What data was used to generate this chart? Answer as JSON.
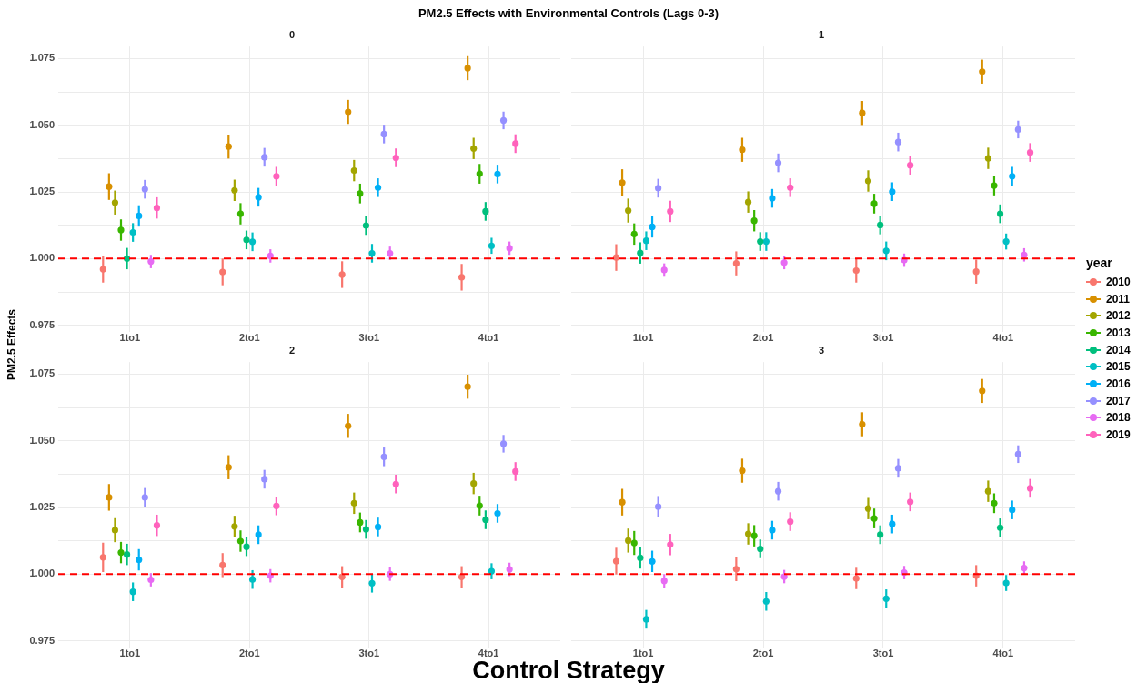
{
  "chart_data": [
    {
      "type": "scatter",
      "title": "0",
      "annotations": [
        "PM2.5 Effects with Environmental Controls (Lags 0-3)"
      ],
      "categories": [
        "1to1",
        "2to1",
        "3to1",
        "4to1"
      ],
      "ylim": [
        0.9725,
        1.0795
      ],
      "yticks": [
        0.975,
        {
          "value": 0.9875,
          "label": null
        },
        {
          "value": 1,
          "label": "1.000"
        },
        {
          "value": 1.0125,
          "label": null
        },
        1.025,
        {
          "value": 1.0375,
          "label": null
        },
        {
          "value": 1.05,
          "label": "1.050"
        },
        {
          "value": 1.0625,
          "label": null
        },
        1.075
      ],
      "grid": true,
      "marker": "circle",
      "legend": "right",
      "legend_title": "year",
      "ref_lines": [
        {
          "axis": "y",
          "value": 1,
          "color": "#ff0000",
          "line_style": "dashed"
        }
      ],
      "series": [
        {
          "name": "2010",
          "color": "#f8766d",
          "values": [
            0.996,
            0.995,
            0.994,
            0.993
          ],
          "errors": [
            0.005,
            0.005,
            0.005,
            0.005
          ]
        },
        {
          "name": "2011",
          "color": "#d89000",
          "values": [
            1.027,
            1.042,
            1.055,
            1.0714
          ],
          "errors": [
            0.005,
            0.0045,
            0.0045,
            0.0045
          ]
        },
        {
          "name": "2012",
          "color": "#a3a500",
          "values": [
            1.021,
            1.0256,
            1.033,
            1.0413
          ],
          "errors": [
            0.0045,
            0.004,
            0.004,
            0.004
          ]
        },
        {
          "name": "2013",
          "color": "#39b600",
          "values": [
            1.0107,
            1.0168,
            1.0244,
            1.0318
          ],
          "errors": [
            0.004,
            0.004,
            0.0037,
            0.0037
          ]
        },
        {
          "name": "2014",
          "color": "#00bf7d",
          "values": [
            1.0,
            1.007,
            1.0124,
            1.0177
          ],
          "errors": [
            0.004,
            0.0035,
            0.0035,
            0.0035
          ]
        },
        {
          "name": "2015",
          "color": "#00bfc4",
          "values": [
            1.0098,
            1.0063,
            1.002,
            1.0048
          ],
          "errors": [
            0.0035,
            0.0035,
            0.0035,
            0.003
          ]
        },
        {
          "name": "2016",
          "color": "#00b0f6",
          "values": [
            1.016,
            1.023,
            1.0266,
            1.0317
          ],
          "errors": [
            0.004,
            0.0035,
            0.0035,
            0.0035
          ]
        },
        {
          "name": "2017",
          "color": "#9590ff",
          "values": [
            1.026,
            1.038,
            1.0467,
            1.0518
          ],
          "errors": [
            0.0035,
            0.0035,
            0.0035,
            0.0033
          ]
        },
        {
          "name": "2018",
          "color": "#e76bf3",
          "values": [
            0.9989,
            1.001,
            1.002,
            1.0039
          ],
          "errors": [
            0.0025,
            0.0025,
            0.0025,
            0.0025
          ]
        },
        {
          "name": "2019",
          "color": "#ff62bc",
          "values": [
            1.019,
            1.0309,
            1.0378,
            1.0431
          ],
          "errors": [
            0.004,
            0.0035,
            0.0035,
            0.0035
          ]
        }
      ]
    },
    {
      "type": "scatter",
      "title": "1",
      "categories": [
        "1to1",
        "2to1",
        "3to1",
        "4to1"
      ],
      "ylim": [
        0.9725,
        1.0795
      ],
      "yticks": [
        0.975,
        0.9875,
        1,
        1.0125,
        1.025,
        1.0375,
        1.05,
        1.0625,
        1.075
      ],
      "tick_labels": "x",
      "grid": true,
      "marker": "circle",
      "ref_lines": [
        {
          "axis": "y",
          "value": 1,
          "color": "#ff0000",
          "line_style": "dashed"
        }
      ],
      "series": [
        {
          "name": "2010",
          "color": "#f8766d",
          "values": [
            1.0004,
            0.9982,
            0.9955,
            0.9951
          ],
          "errors": [
            0.005,
            0.0045,
            0.0045,
            0.0045
          ]
        },
        {
          "name": "2011",
          "color": "#d89000",
          "values": [
            1.0285,
            1.0408,
            1.0546,
            1.0701
          ],
          "errors": [
            0.005,
            0.0045,
            0.0045,
            0.0045
          ]
        },
        {
          "name": "2012",
          "color": "#a3a500",
          "values": [
            1.018,
            1.0212,
            1.0291,
            1.0376
          ],
          "errors": [
            0.0045,
            0.004,
            0.004,
            0.004
          ]
        },
        {
          "name": "2013",
          "color": "#39b600",
          "values": [
            1.0092,
            1.0142,
            1.0206,
            1.0274
          ],
          "errors": [
            0.004,
            0.004,
            0.0037,
            0.0037
          ]
        },
        {
          "name": "2014",
          "color": "#00bf7d",
          "values": [
            1.0021,
            1.0064,
            1.0126,
            1.0168
          ],
          "errors": [
            0.004,
            0.0035,
            0.0035,
            0.0035
          ]
        },
        {
          "name": "2015",
          "color": "#00bfc4",
          "values": [
            1.0067,
            1.0064,
            1.0029,
            1.0064
          ],
          "errors": [
            0.0035,
            0.0035,
            0.0035,
            0.003
          ]
        },
        {
          "name": "2016",
          "color": "#00b0f6",
          "values": [
            1.0119,
            1.0226,
            1.0251,
            1.0309
          ],
          "errors": [
            0.004,
            0.0035,
            0.0035,
            0.0035
          ]
        },
        {
          "name": "2017",
          "color": "#9590ff",
          "values": [
            1.0264,
            1.0359,
            1.0437,
            1.0484
          ],
          "errors": [
            0.0035,
            0.0035,
            0.0035,
            0.0033
          ]
        },
        {
          "name": "2018",
          "color": "#e76bf3",
          "values": [
            0.9957,
            0.9985,
            0.9994,
            1.0014
          ],
          "errors": [
            0.0025,
            0.0025,
            0.0025,
            0.0025
          ]
        },
        {
          "name": "2019",
          "color": "#ff62bc",
          "values": [
            1.0177,
            1.0266,
            1.035,
            1.0398
          ],
          "errors": [
            0.004,
            0.0035,
            0.0035,
            0.0035
          ]
        }
      ]
    },
    {
      "type": "scatter",
      "title": "2",
      "xlabel": "Control Strategy",
      "ylabel": "PM2.5 Effects",
      "categories": [
        "1to1",
        "2to1",
        "3to1",
        "4to1"
      ],
      "ylim": [
        0.9725,
        1.0795
      ],
      "yticks": [
        0.975,
        {
          "value": 0.9875,
          "label": null
        },
        {
          "value": 1,
          "label": "1.000"
        },
        {
          "value": 1.0125,
          "label": null
        },
        1.025,
        {
          "value": 1.0375,
          "label": null
        },
        {
          "value": 1.05,
          "label": "1.050"
        },
        {
          "value": 1.0625,
          "label": null
        },
        1.075
      ],
      "grid": true,
      "marker": "circle",
      "ref_lines": [
        {
          "axis": "y",
          "value": 1,
          "color": "#ff0000",
          "line_style": "dashed"
        }
      ],
      "series": [
        {
          "name": "2010",
          "color": "#f8766d",
          "values": [
            1.0063,
            1.0034,
            0.999,
            0.999
          ],
          "errors": [
            0.0055,
            0.0045,
            0.004,
            0.004
          ]
        },
        {
          "name": "2011",
          "color": "#d89000",
          "values": [
            1.0288,
            1.0401,
            1.0556,
            1.0703
          ],
          "errors": [
            0.005,
            0.0045,
            0.0045,
            0.0045
          ]
        },
        {
          "name": "2012",
          "color": "#a3a500",
          "values": [
            1.0165,
            1.0179,
            1.0266,
            1.034
          ],
          "errors": [
            0.0045,
            0.004,
            0.004,
            0.004
          ]
        },
        {
          "name": "2013",
          "color": "#39b600",
          "values": [
            1.0081,
            1.0124,
            1.0194,
            1.0257
          ],
          "errors": [
            0.004,
            0.004,
            0.0037,
            0.0037
          ]
        },
        {
          "name": "2014",
          "color": "#00bf7d",
          "values": [
            1.0074,
            1.0103,
            1.0168,
            1.0204
          ],
          "errors": [
            0.004,
            0.0035,
            0.0035,
            0.0035
          ]
        },
        {
          "name": "2015",
          "color": "#00bfc4",
          "values": [
            0.9934,
            0.998,
            0.9966,
            1.0011
          ],
          "errors": [
            0.0035,
            0.0035,
            0.0035,
            0.003
          ]
        },
        {
          "name": "2016",
          "color": "#00b0f6",
          "values": [
            1.0054,
            1.0148,
            1.0177,
            1.0228
          ],
          "errors": [
            0.004,
            0.0035,
            0.0035,
            0.0035
          ]
        },
        {
          "name": "2017",
          "color": "#9590ff",
          "values": [
            1.0288,
            1.0356,
            1.044,
            1.0489
          ],
          "errors": [
            0.0035,
            0.0035,
            0.0035,
            0.0033
          ]
        },
        {
          "name": "2018",
          "color": "#e76bf3",
          "values": [
            0.9979,
            0.9994,
            1.0,
            1.0018
          ],
          "errors": [
            0.0025,
            0.0025,
            0.0025,
            0.0025
          ]
        },
        {
          "name": "2019",
          "color": "#ff62bc",
          "values": [
            1.0183,
            1.0256,
            1.0338,
            1.0385
          ],
          "errors": [
            0.004,
            0.0035,
            0.0035,
            0.0035
          ]
        }
      ]
    },
    {
      "type": "scatter",
      "title": "3",
      "categories": [
        "1to1",
        "2to1",
        "3to1",
        "4to1"
      ],
      "ylim": [
        0.9725,
        1.0795
      ],
      "yticks": [
        0.975,
        0.9875,
        1,
        1.0125,
        1.025,
        1.0375,
        1.05,
        1.0625,
        1.075
      ],
      "tick_labels": "x",
      "grid": true,
      "marker": "circle",
      "ref_lines": [
        {
          "axis": "y",
          "value": 1,
          "color": "#ff0000",
          "line_style": "dashed"
        }
      ],
      "series": [
        {
          "name": "2010",
          "color": "#f8766d",
          "values": [
            1.0049,
            1.0019,
            0.9984,
            0.9994
          ],
          "errors": [
            0.005,
            0.0045,
            0.004,
            0.004
          ]
        },
        {
          "name": "2011",
          "color": "#d89000",
          "values": [
            1.027,
            1.0388,
            1.0562,
            1.0687
          ],
          "errors": [
            0.005,
            0.0045,
            0.0045,
            0.0045
          ]
        },
        {
          "name": "2012",
          "color": "#a3a500",
          "values": [
            1.0126,
            1.0151,
            1.0246,
            1.0311
          ],
          "errors": [
            0.0045,
            0.004,
            0.004,
            0.004
          ]
        },
        {
          "name": "2013",
          "color": "#39b600",
          "values": [
            1.0117,
            1.0144,
            1.0209,
            1.0266
          ],
          "errors": [
            0.0045,
            0.004,
            0.0037,
            0.0037
          ]
        },
        {
          "name": "2014",
          "color": "#00bf7d",
          "values": [
            1.0061,
            1.0095,
            1.0148,
            1.0174
          ],
          "errors": [
            0.004,
            0.0035,
            0.0035,
            0.0035
          ]
        },
        {
          "name": "2015",
          "color": "#00bfc4",
          "values": [
            0.9831,
            0.9898,
            0.9908,
            0.9967
          ],
          "errors": [
            0.0035,
            0.0035,
            0.0035,
            0.003
          ]
        },
        {
          "name": "2016",
          "color": "#00b0f6",
          "values": [
            1.0048,
            1.0165,
            1.0188,
            1.0241
          ],
          "errors": [
            0.004,
            0.0035,
            0.0035,
            0.0035
          ]
        },
        {
          "name": "2017",
          "color": "#9590ff",
          "values": [
            1.0253,
            1.0311,
            1.0397,
            1.045
          ],
          "errors": [
            0.004,
            0.0035,
            0.0035,
            0.0033
          ]
        },
        {
          "name": "2018",
          "color": "#e76bf3",
          "values": [
            0.9975,
            0.9991,
            1.0006,
            1.0023
          ],
          "errors": [
            0.0025,
            0.0025,
            0.0025,
            0.0025
          ]
        },
        {
          "name": "2019",
          "color": "#ff62bc",
          "values": [
            1.0111,
            1.0197,
            1.0271,
            1.0322
          ],
          "errors": [
            0.004,
            0.0035,
            0.0035,
            0.0035
          ]
        }
      ]
    }
  ]
}
